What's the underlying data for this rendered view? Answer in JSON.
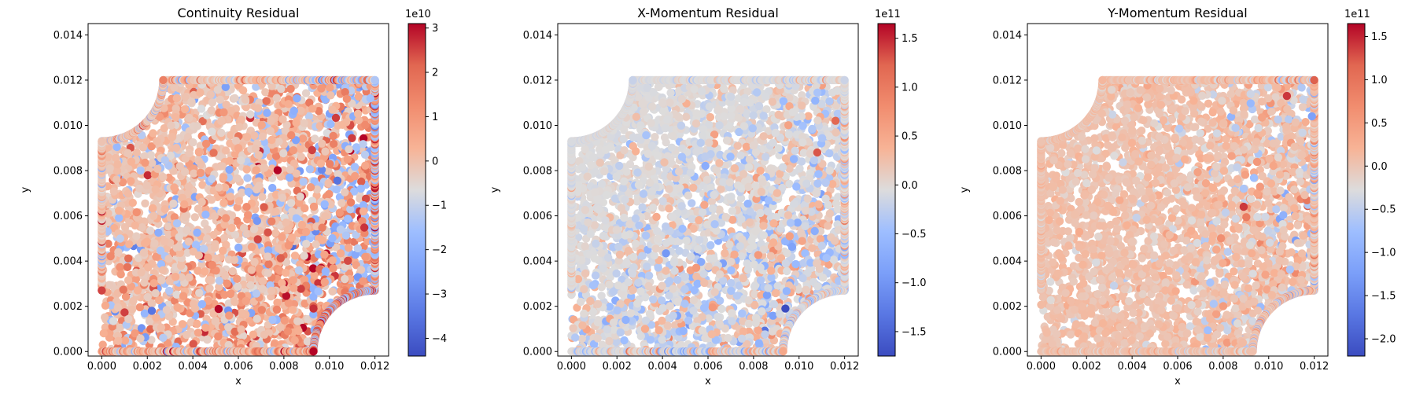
{
  "figure": {
    "panels": [
      {
        "id": "continuity",
        "title": "Continuity Residual",
        "xlabel": "x",
        "ylabel": "y",
        "colorbar": {
          "exponent_label": "1e10",
          "min": -4.4,
          "max": 3.1,
          "ticks": [
            3,
            2,
            1,
            0,
            -1,
            -2,
            -3,
            -4
          ],
          "tick_labels": [
            "3",
            "2",
            "1",
            "0",
            "−1",
            "−2",
            "−3",
            "−4"
          ]
        }
      },
      {
        "id": "x-momentum",
        "title": "X-Momentum Residual",
        "xlabel": "x",
        "ylabel": "y",
        "colorbar": {
          "exponent_label": "1e11",
          "min": -1.75,
          "max": 1.65,
          "ticks": [
            1.5,
            1.0,
            0.5,
            0.0,
            -0.5,
            -1.0,
            -1.5
          ],
          "tick_labels": [
            "1.5",
            "1.0",
            "0.5",
            "0.0",
            "−0.5",
            "−1.0",
            "−1.5"
          ]
        }
      },
      {
        "id": "y-momentum",
        "title": "Y-Momentum Residual",
        "xlabel": "x",
        "ylabel": "y",
        "colorbar": {
          "exponent_label": "1e11",
          "min": -2.2,
          "max": 1.65,
          "ticks": [
            1.5,
            1.0,
            0.5,
            0.0,
            -0.5,
            -1.0,
            -1.5,
            -2.0
          ],
          "tick_labels": [
            "1.5",
            "1.0",
            "0.5",
            "0.0",
            "−0.5",
            "−1.0",
            "−1.5",
            "−2.0"
          ]
        }
      }
    ]
  },
  "chart_data": [
    {
      "type": "scatter",
      "title": "Continuity Residual",
      "xlabel": "x",
      "ylabel": "y",
      "xlim": [
        -0.0006,
        0.0126
      ],
      "ylim": [
        -0.0002,
        0.0145
      ],
      "xticks": [
        0.0,
        0.002,
        0.004,
        0.006,
        0.008,
        0.01,
        0.012
      ],
      "xtick_labels": [
        "0.000",
        "0.002",
        "0.004",
        "0.006",
        "0.008",
        "0.010",
        "0.012"
      ],
      "yticks": [
        0.0,
        0.002,
        0.004,
        0.006,
        0.008,
        0.01,
        0.012,
        0.014
      ],
      "ytick_labels": [
        "0.000",
        "0.002",
        "0.004",
        "0.006",
        "0.008",
        "0.010",
        "0.012",
        "0.014"
      ],
      "colormap": "coolwarm",
      "color_range": [
        -44000000000.0,
        31000000000.0
      ],
      "grid": false,
      "domain": "square 0–0.012 with quarter-circle cut-outs (r≈0.0027) at top-left and bottom-right corners",
      "trend": "mostly mildly positive (~0.5e10); strong positive and negative values concentrated along the right edge and lower-right curved boundary",
      "sample_points": [
        {
          "x": 0.0,
          "y": 0.0027,
          "value": 25000000000.0
        },
        {
          "x": 0.0093,
          "y": 0.0019,
          "value": 27000000000.0
        },
        {
          "x": 0.0118,
          "y": 0.0112,
          "value": -15000000000.0
        },
        {
          "x": 0.0022,
          "y": 0.0018,
          "value": -35000000000.0
        },
        {
          "x": 0.006,
          "y": 0.009,
          "value": 5000000000.0
        }
      ]
    },
    {
      "type": "scatter",
      "title": "X-Momentum Residual",
      "xlabel": "x",
      "ylabel": "y",
      "xlim": [
        -0.0006,
        0.0126
      ],
      "ylim": [
        -0.0002,
        0.0145
      ],
      "xticks": [
        0.0,
        0.002,
        0.004,
        0.006,
        0.008,
        0.01,
        0.012
      ],
      "xtick_labels": [
        "0.000",
        "0.002",
        "0.004",
        "0.006",
        "0.008",
        "0.010",
        "0.012"
      ],
      "yticks": [
        0.0,
        0.002,
        0.004,
        0.006,
        0.008,
        0.01,
        0.012,
        0.014
      ],
      "ytick_labels": [
        "0.000",
        "0.002",
        "0.004",
        "0.006",
        "0.008",
        "0.010",
        "0.012",
        "0.014"
      ],
      "colormap": "coolwarm",
      "color_range": [
        -175000000000.0,
        165000000000.0
      ],
      "grid": false,
      "domain": "square 0–0.012 with quarter-circle cut-outs (r≈0.0027) at top-left and bottom-right corners",
      "trend": "near zero in the upper-left region; mixed positive/negative values toward the right and bottom",
      "sample_points": [
        {
          "x": 0.0094,
          "y": 0.0019,
          "value": -175000000000.0
        },
        {
          "x": 0.0108,
          "y": 0.0088,
          "value": 130000000000.0
        },
        {
          "x": 0.0116,
          "y": 0.0102,
          "value": 120000000000.0
        },
        {
          "x": 0.004,
          "y": 0.011,
          "value": 0.0
        }
      ]
    },
    {
      "type": "scatter",
      "title": "Y-Momentum Residual",
      "xlabel": "x",
      "ylabel": "y",
      "xlim": [
        -0.0006,
        0.0126
      ],
      "ylim": [
        -0.0002,
        0.0145
      ],
      "xticks": [
        0.0,
        0.002,
        0.004,
        0.006,
        0.008,
        0.01,
        0.012
      ],
      "xtick_labels": [
        "0.000",
        "0.002",
        "0.004",
        "0.006",
        "0.008",
        "0.010",
        "0.012"
      ],
      "yticks": [
        0.0,
        0.002,
        0.004,
        0.006,
        0.008,
        0.01,
        0.012,
        0.014
      ],
      "ytick_labels": [
        "0.000",
        "0.002",
        "0.004",
        "0.006",
        "0.008",
        "0.010",
        "0.012",
        "0.014"
      ],
      "colormap": "coolwarm",
      "color_range": [
        -220000000000.0,
        165000000000.0
      ],
      "grid": false,
      "domain": "square 0–0.012 with quarter-circle cut-outs (r≈0.0027) at top-left and bottom-right corners",
      "trend": "mostly mildly positive; mixed signs toward the right edge and bottom boundary",
      "sample_points": [
        {
          "x": 0.0108,
          "y": 0.0113,
          "value": 140000000000.0
        },
        {
          "x": 0.0119,
          "y": 0.0104,
          "value": -120000000000.0
        },
        {
          "x": 0.0089,
          "y": 0.0064,
          "value": 140000000000.0
        }
      ]
    }
  ]
}
